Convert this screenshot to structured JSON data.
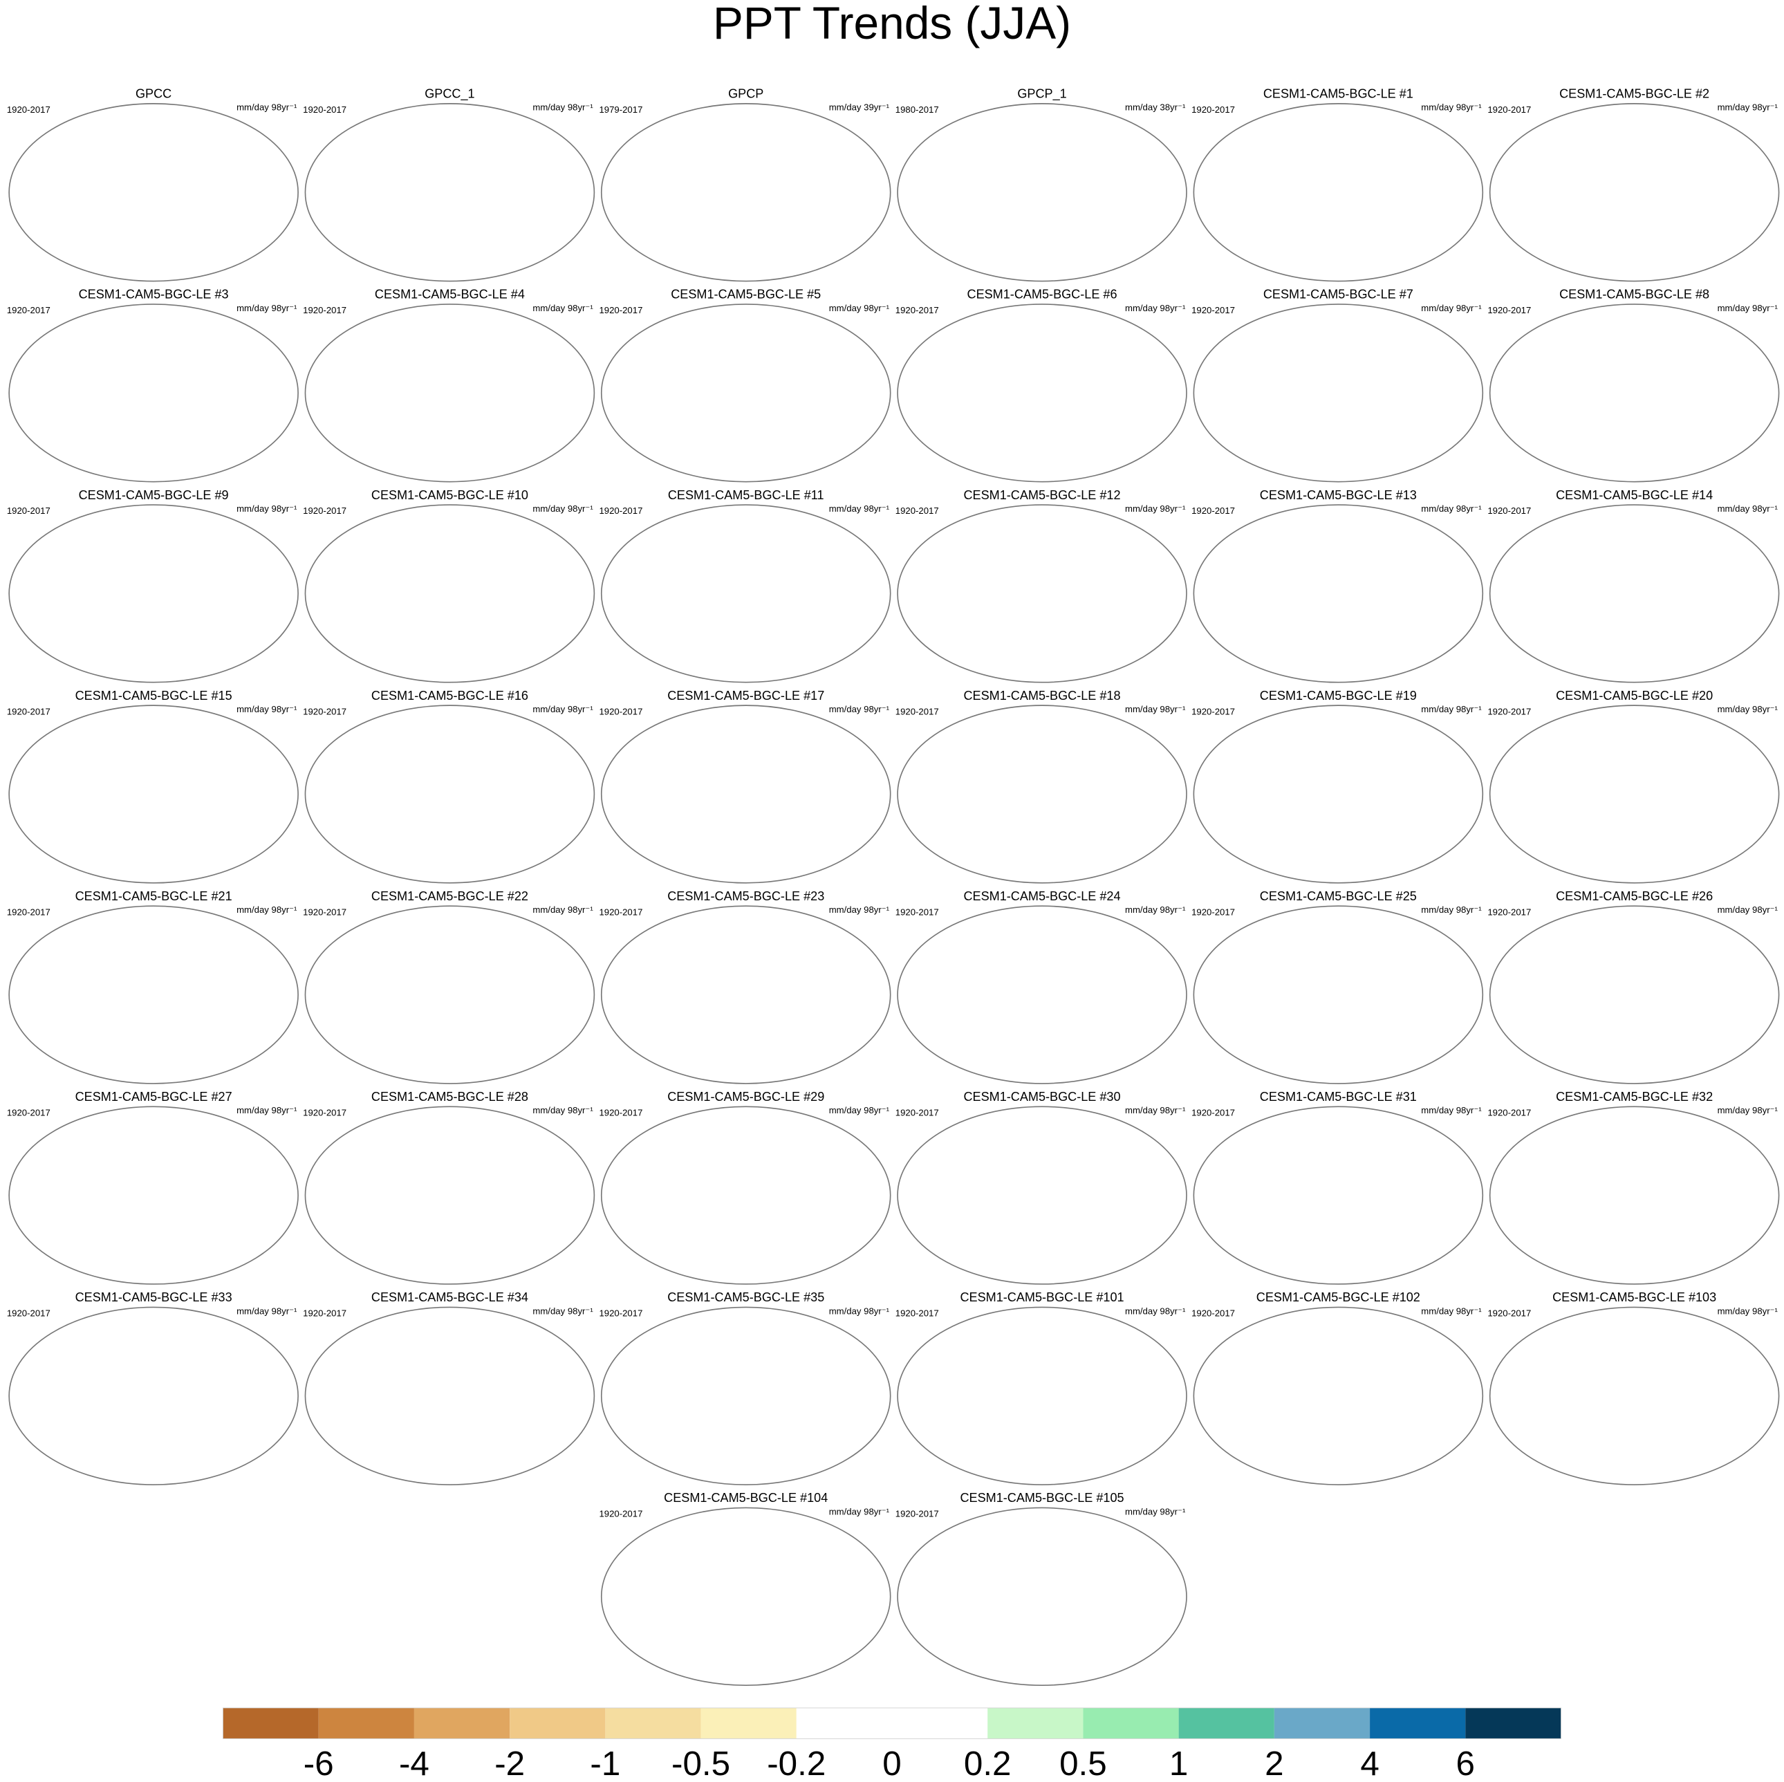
{
  "title": "PPT Trends (JJA)",
  "panels": [
    {
      "title": "GPCC",
      "period": "1920-2017",
      "units": "mm/day 98yr⁻¹"
    },
    {
      "title": "GPCC_1",
      "period": "1920-2017",
      "units": "mm/day 98yr⁻¹"
    },
    {
      "title": "GPCP",
      "period": "1979-2017",
      "units": "mm/day 39yr⁻¹"
    },
    {
      "title": "GPCP_1",
      "period": "1980-2017",
      "units": "mm/day 38yr⁻¹"
    },
    {
      "title": "CESM1-CAM5-BGC-LE #1",
      "period": "1920-2017",
      "units": "mm/day 98yr⁻¹"
    },
    {
      "title": "CESM1-CAM5-BGC-LE #2",
      "period": "1920-2017",
      "units": "mm/day 98yr⁻¹"
    },
    {
      "title": "CESM1-CAM5-BGC-LE #3",
      "period": "1920-2017",
      "units": "mm/day 98yr⁻¹"
    },
    {
      "title": "CESM1-CAM5-BGC-LE #4",
      "period": "1920-2017",
      "units": "mm/day 98yr⁻¹"
    },
    {
      "title": "CESM1-CAM5-BGC-LE #5",
      "period": "1920-2017",
      "units": "mm/day 98yr⁻¹"
    },
    {
      "title": "CESM1-CAM5-BGC-LE #6",
      "period": "1920-2017",
      "units": "mm/day 98yr⁻¹"
    },
    {
      "title": "CESM1-CAM5-BGC-LE #7",
      "period": "1920-2017",
      "units": "mm/day 98yr⁻¹"
    },
    {
      "title": "CESM1-CAM5-BGC-LE #8",
      "period": "1920-2017",
      "units": "mm/day 98yr⁻¹"
    },
    {
      "title": "CESM1-CAM5-BGC-LE #9",
      "period": "1920-2017",
      "units": "mm/day 98yr⁻¹"
    },
    {
      "title": "CESM1-CAM5-BGC-LE #10",
      "period": "1920-2017",
      "units": "mm/day 98yr⁻¹"
    },
    {
      "title": "CESM1-CAM5-BGC-LE #11",
      "period": "1920-2017",
      "units": "mm/day 98yr⁻¹"
    },
    {
      "title": "CESM1-CAM5-BGC-LE #12",
      "period": "1920-2017",
      "units": "mm/day 98yr⁻¹"
    },
    {
      "title": "CESM1-CAM5-BGC-LE #13",
      "period": "1920-2017",
      "units": "mm/day 98yr⁻¹"
    },
    {
      "title": "CESM1-CAM5-BGC-LE #14",
      "period": "1920-2017",
      "units": "mm/day 98yr⁻¹"
    },
    {
      "title": "CESM1-CAM5-BGC-LE #15",
      "period": "1920-2017",
      "units": "mm/day 98yr⁻¹"
    },
    {
      "title": "CESM1-CAM5-BGC-LE #16",
      "period": "1920-2017",
      "units": "mm/day 98yr⁻¹"
    },
    {
      "title": "CESM1-CAM5-BGC-LE #17",
      "period": "1920-2017",
      "units": "mm/day 98yr⁻¹"
    },
    {
      "title": "CESM1-CAM5-BGC-LE #18",
      "period": "1920-2017",
      "units": "mm/day 98yr⁻¹"
    },
    {
      "title": "CESM1-CAM5-BGC-LE #19",
      "period": "1920-2017",
      "units": "mm/day 98yr⁻¹"
    },
    {
      "title": "CESM1-CAM5-BGC-LE #20",
      "period": "1920-2017",
      "units": "mm/day 98yr⁻¹"
    },
    {
      "title": "CESM1-CAM5-BGC-LE #21",
      "period": "1920-2017",
      "units": "mm/day 98yr⁻¹"
    },
    {
      "title": "CESM1-CAM5-BGC-LE #22",
      "period": "1920-2017",
      "units": "mm/day 98yr⁻¹"
    },
    {
      "title": "CESM1-CAM5-BGC-LE #23",
      "period": "1920-2017",
      "units": "mm/day 98yr⁻¹"
    },
    {
      "title": "CESM1-CAM5-BGC-LE #24",
      "period": "1920-2017",
      "units": "mm/day 98yr⁻¹"
    },
    {
      "title": "CESM1-CAM5-BGC-LE #25",
      "period": "1920-2017",
      "units": "mm/day 98yr⁻¹"
    },
    {
      "title": "CESM1-CAM5-BGC-LE #26",
      "period": "1920-2017",
      "units": "mm/day 98yr⁻¹"
    },
    {
      "title": "CESM1-CAM5-BGC-LE #27",
      "period": "1920-2017",
      "units": "mm/day 98yr⁻¹"
    },
    {
      "title": "CESM1-CAM5-BGC-LE #28",
      "period": "1920-2017",
      "units": "mm/day 98yr⁻¹"
    },
    {
      "title": "CESM1-CAM5-BGC-LE #29",
      "period": "1920-2017",
      "units": "mm/day 98yr⁻¹"
    },
    {
      "title": "CESM1-CAM5-BGC-LE #30",
      "period": "1920-2017",
      "units": "mm/day 98yr⁻¹"
    },
    {
      "title": "CESM1-CAM5-BGC-LE #31",
      "period": "1920-2017",
      "units": "mm/day 98yr⁻¹"
    },
    {
      "title": "CESM1-CAM5-BGC-LE #32",
      "period": "1920-2017",
      "units": "mm/day 98yr⁻¹"
    },
    {
      "title": "CESM1-CAM5-BGC-LE #33",
      "period": "1920-2017",
      "units": "mm/day 98yr⁻¹"
    },
    {
      "title": "CESM1-CAM5-BGC-LE #34",
      "period": "1920-2017",
      "units": "mm/day 98yr⁻¹"
    },
    {
      "title": "CESM1-CAM5-BGC-LE #35",
      "period": "1920-2017",
      "units": "mm/day 98yr⁻¹"
    },
    {
      "title": "CESM1-CAM5-BGC-LE #101",
      "period": "1920-2017",
      "units": "mm/day 98yr⁻¹"
    },
    {
      "title": "CESM1-CAM5-BGC-LE #102",
      "period": "1920-2017",
      "units": "mm/day 98yr⁻¹"
    },
    {
      "title": "CESM1-CAM5-BGC-LE #103",
      "period": "1920-2017",
      "units": "mm/day 98yr⁻¹"
    },
    {
      "title": "CESM1-CAM5-BGC-LE #104",
      "period": "1920-2017",
      "units": "mm/day 98yr⁻¹"
    },
    {
      "title": "CESM1-CAM5-BGC-LE #105",
      "period": "1920-2017",
      "units": "mm/day 98yr⁻¹"
    }
  ],
  "colorbar": {
    "colors": [
      "#b5682a",
      "#cd853f",
      "#e0a660",
      "#f0c987",
      "#f5dda0",
      "#fbf0b8",
      "#ffffff",
      "#ffffff",
      "#c8f7c8",
      "#98ecb0",
      "#55c2a0",
      "#6aa8c8",
      "#0a6aa8",
      "#053858"
    ],
    "ticks": [
      -6,
      -4,
      -2,
      -1,
      -0.5,
      -0.2,
      0,
      0.2,
      0.5,
      1,
      2,
      4,
      6
    ]
  }
}
